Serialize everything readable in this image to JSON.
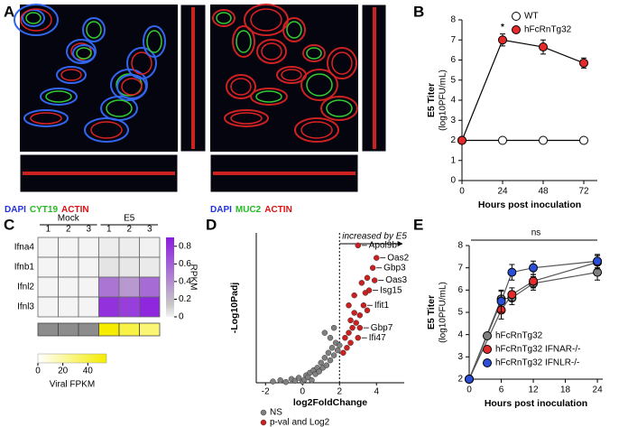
{
  "chart_data": [
    {
      "type": "image",
      "label": "A",
      "images": [
        {
          "stains": [
            "DAPI",
            "CYT19",
            "ACTIN"
          ],
          "colors": [
            "#2233dd",
            "#22bb22",
            "#dd1111"
          ]
        },
        {
          "stains": [
            "DAPI",
            "MUC2",
            "ACTIN"
          ],
          "colors": [
            "#2233dd",
            "#22bb22",
            "#dd1111"
          ]
        }
      ]
    },
    {
      "type": "line",
      "label": "B",
      "ylabel": [
        "E5 Titer",
        "(log10PFU/mL)"
      ],
      "xlabel": "Hours post inoculation",
      "x": [
        0,
        24,
        48,
        72
      ],
      "xlim": [
        0,
        80
      ],
      "xticks": [
        0,
        24,
        48,
        72
      ],
      "ylim": [
        0,
        8
      ],
      "yticks": [
        0,
        1,
        2,
        3,
        4,
        5,
        6,
        7,
        8
      ],
      "line_color": "#000000",
      "legend": "upper right",
      "series": [
        {
          "name": "WT",
          "color": "#ffffff",
          "values": [
            2,
            2,
            2,
            2
          ]
        },
        {
          "name": "hFcRnTg32",
          "color": "#e32b2b",
          "values": [
            2,
            7.0,
            6.65,
            5.85
          ],
          "errors": [
            0,
            0.3,
            0.35,
            0.25
          ]
        }
      ],
      "annotations": [
        {
          "text": "*",
          "x": 24
        }
      ]
    },
    {
      "type": "heatmap",
      "label": "C",
      "groups": [
        "Mock",
        "E5"
      ],
      "columns": [
        "1",
        "2",
        "3",
        "1",
        "2",
        "3"
      ],
      "rows": [
        "Ifna4",
        "Ifnb1",
        "Ifnl2",
        "Ifnl3"
      ],
      "values": [
        [
          0,
          0,
          0,
          0.02,
          0.02,
          0.01
        ],
        [
          0,
          0,
          0,
          0.05,
          0.04,
          0.03
        ],
        [
          0,
          0,
          0,
          0.5,
          0.35,
          0.55
        ],
        [
          0,
          0,
          0,
          0.8,
          0.75,
          0.85
        ]
      ],
      "clim": [
        0,
        0.9
      ],
      "cticks": [
        0,
        0.2,
        0.4,
        0.6,
        0.8
      ],
      "colorbar_label": "RPKM",
      "viral_values": [
        null,
        null,
        null,
        55,
        40,
        30
      ],
      "viral_clim": [
        0,
        55
      ],
      "viral_ticks": [
        0,
        20,
        40
      ],
      "viral_label": "Viral FPKM"
    },
    {
      "type": "scatter",
      "label": "D",
      "xlabel": "log2FoldChange",
      "ylabel": "-Log10Padj",
      "xlim": [
        -2.5,
        5.5
      ],
      "xticks": [
        -2,
        0,
        2,
        4
      ],
      "ylim": [
        0,
        60
      ],
      "vline": 2,
      "vline_label": "increased by E5",
      "series": [
        {
          "name": "NS",
          "color": "#808080",
          "x": [
            -1.6,
            -1.2,
            -0.9,
            -0.6,
            -0.4,
            -0.2,
            0,
            0.1,
            0.2,
            0.3,
            0.4,
            0.5,
            0.6,
            0.7,
            0.8,
            0.9,
            1.0,
            1.1,
            1.2,
            1.3,
            1.4,
            1.5,
            1.6,
            1.7,
            1.8,
            1.9,
            2.0,
            1.5,
            1.2,
            1.7
          ],
          "values": [
            0.5,
            1,
            0.3,
            1.5,
            0.8,
            2,
            0.5,
            1.2,
            3,
            2.2,
            4,
            1,
            5,
            3.5,
            6,
            4.5,
            8,
            6,
            10,
            7,
            12,
            9,
            14,
            11,
            16,
            13,
            15,
            18,
            20,
            22
          ]
        },
        {
          "name": "p-val and Log2",
          "color": "#cc2020",
          "x": [
            3.0,
            4.0,
            3.8,
            3.9,
            3.6,
            3.3,
            3.1,
            3.0,
            2.2,
            2.3,
            2.4,
            2.5,
            2.6,
            2.7,
            2.8,
            2.9,
            3.1,
            3.4,
            3.5,
            2.5,
            2.8,
            3.2,
            3.5,
            2.6
          ],
          "values": [
            55,
            50,
            46,
            41,
            37,
            31,
            22,
            18,
            12,
            18,
            14,
            20,
            25,
            22,
            28,
            24,
            27,
            36,
            29,
            31,
            35,
            40,
            42,
            16
          ],
          "labels": [
            "Apol9b",
            "Oas2",
            "Gbp3",
            "Oas3",
            "Isg15",
            "Ifit1",
            "Gbp7",
            "Ifi47",
            null,
            null,
            null,
            null,
            null,
            null,
            null,
            null,
            null,
            null,
            null,
            null,
            null,
            null,
            null,
            null
          ]
        }
      ]
    },
    {
      "type": "line",
      "label": "E",
      "ylabel": [
        "E5 Titer",
        "(log10PFU/mL)"
      ],
      "xlabel": "Hours post inoculation",
      "x": [
        0,
        6,
        8,
        12,
        24
      ],
      "xlim": [
        0,
        25
      ],
      "xticks": [
        0,
        6,
        12,
        18,
        24
      ],
      "ylim": [
        2,
        8
      ],
      "yticks": [
        2,
        3,
        4,
        5,
        6,
        7,
        8
      ],
      "line_color": "#555555",
      "legend": "lower right",
      "series": [
        {
          "name": "hFcRnTg32",
          "color": "#808080",
          "values": [
            2,
            5.6,
            5.65,
            6.3,
            6.8
          ],
          "errors": [
            0,
            0.35,
            0.3,
            0.3,
            0.35
          ]
        },
        {
          "name": "hFcRnTg32 IFNAR-/-",
          "color": "#e32b2b",
          "values": [
            2,
            5.1,
            5.8,
            6.4,
            7.25
          ],
          "errors": [
            0,
            0.4,
            0.3,
            0.3,
            0.3
          ]
        },
        {
          "name": "hFcRnTg32 IFNLR-/-",
          "color": "#2a4fd6",
          "values": [
            2,
            5.5,
            6.8,
            7.0,
            7.3
          ],
          "errors": [
            0,
            0.5,
            0.35,
            0.3,
            0.3
          ]
        }
      ],
      "annotations": [
        {
          "text": "ns"
        }
      ]
    }
  ]
}
